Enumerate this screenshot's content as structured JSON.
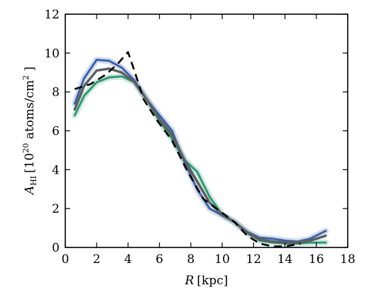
{
  "chart_data": {
    "type": "line",
    "xlabel_var": "R",
    "xlabel_unit": "[kpc]",
    "ylabel_var": "A",
    "ylabel_sub": "HI",
    "ylabel_pre": "[10",
    "ylabel_exp": "20",
    "ylabel_mid": " atoms/cm",
    "ylabel_exp2": "2",
    "ylabel_post": " ]",
    "xlim": [
      0,
      18
    ],
    "ylim": [
      0,
      12
    ],
    "xticks": [
      0,
      2,
      4,
      6,
      8,
      10,
      12,
      14,
      16,
      18
    ],
    "yticks": [
      0,
      2,
      4,
      6,
      8,
      10,
      12
    ],
    "grid": false,
    "series": [
      {
        "style": "green-band",
        "color": "#2e9a72",
        "x": [
          0.6,
          1.2,
          2.0,
          2.8,
          3.6,
          4.4,
          5.2,
          6.0,
          6.8,
          7.6,
          8.4,
          9.2,
          10.0,
          10.8,
          11.6,
          12.4,
          13.2,
          14.0,
          14.8,
          15.6,
          16.6
        ],
        "y": [
          6.8,
          7.8,
          8.5,
          8.75,
          8.8,
          8.5,
          7.6,
          6.5,
          5.6,
          4.5,
          3.9,
          2.6,
          1.7,
          1.3,
          0.75,
          0.35,
          0.25,
          0.2,
          0.2,
          0.25,
          0.25
        ]
      },
      {
        "style": "blue-band",
        "color": "#3b62a8",
        "x": [
          0.6,
          1.2,
          2.0,
          2.8,
          3.6,
          4.4,
          5.2,
          6.0,
          6.8,
          7.6,
          8.4,
          9.2,
          10.0,
          10.8,
          11.6,
          12.4,
          13.2,
          14.0,
          14.8,
          15.6,
          16.6
        ],
        "y": [
          7.4,
          8.7,
          9.65,
          9.6,
          9.25,
          8.6,
          7.6,
          6.8,
          6.0,
          4.4,
          3.0,
          2.0,
          1.65,
          1.3,
          0.8,
          0.5,
          0.45,
          0.35,
          0.3,
          0.45,
          0.85
        ]
      },
      {
        "style": "gray",
        "color": "#5f5f5f",
        "x": [
          0.6,
          1.2,
          2.0,
          2.8,
          3.6,
          4.4,
          5.2,
          6.0,
          6.8,
          7.6,
          8.4,
          9.2,
          10.0,
          10.8,
          11.6,
          12.4,
          13.2,
          14.0,
          14.8,
          15.6,
          16.6
        ],
        "y": [
          7.1,
          8.3,
          9.1,
          9.2,
          9.0,
          8.5,
          7.6,
          6.6,
          5.8,
          4.5,
          3.4,
          2.3,
          1.7,
          1.3,
          0.75,
          0.4,
          0.3,
          0.25,
          0.25,
          0.35,
          0.6
        ]
      },
      {
        "style": "black-dashed",
        "color": "#000000",
        "x": [
          0.6,
          1.6,
          2.6,
          3.4,
          4.0,
          4.4,
          5.0,
          5.8,
          6.8,
          7.8,
          8.8,
          9.8,
          10.8,
          11.6,
          12.4,
          13.2,
          14.0,
          15.0
        ],
        "y": [
          8.15,
          8.4,
          8.9,
          9.5,
          10.05,
          9.1,
          7.6,
          6.6,
          5.5,
          3.9,
          2.5,
          1.9,
          1.3,
          0.6,
          0.2,
          0.05,
          0.05,
          0.2
        ]
      }
    ]
  }
}
